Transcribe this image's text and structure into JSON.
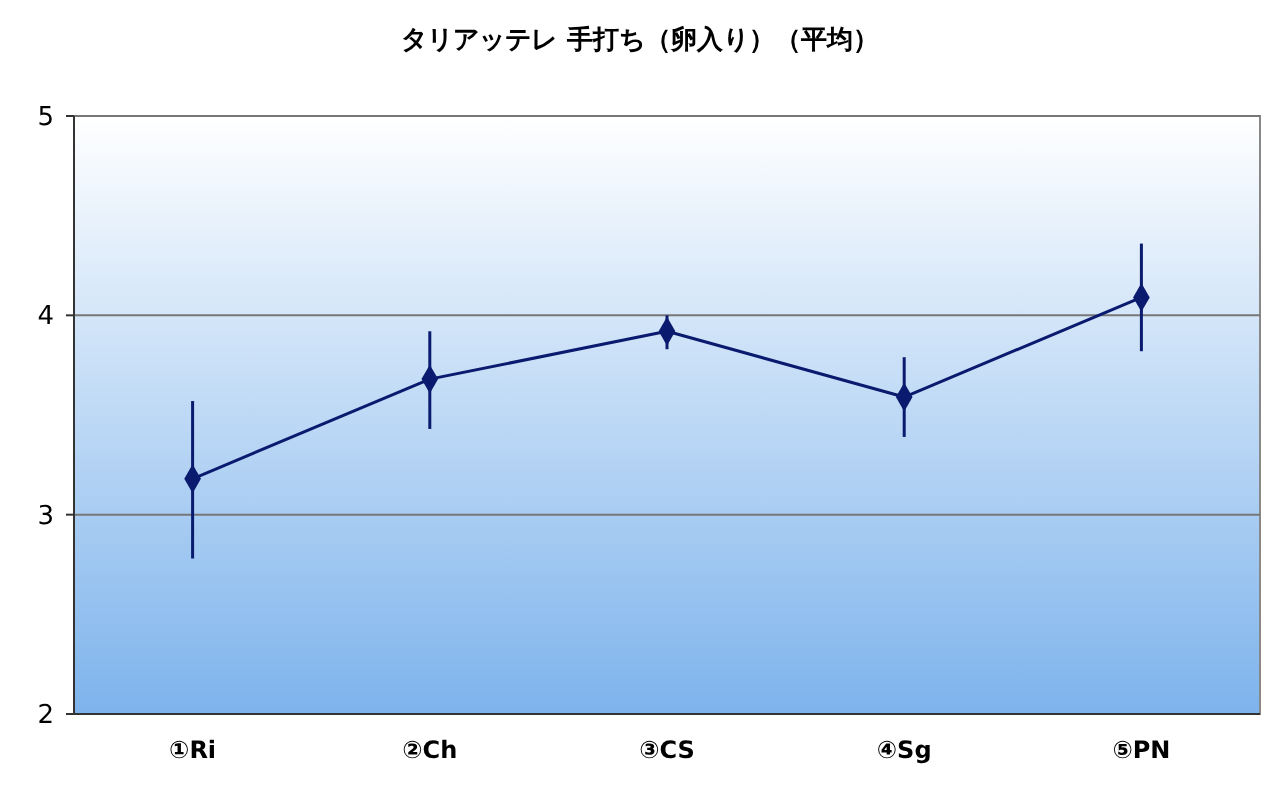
{
  "chart_data": {
    "type": "line",
    "title": "タリアッテレ 手打ち（卵入り）（平均）",
    "categories": [
      "①Ri",
      "②Ch",
      "③CS",
      "④Sg",
      "⑤PN"
    ],
    "series": [
      {
        "color": "#0a1a6e",
        "values": [
          3.18,
          3.68,
          3.92,
          3.59,
          4.09
        ],
        "errors": [
          [
            2.78,
            3.57
          ],
          [
            3.43,
            3.92
          ],
          [
            3.83,
            4.0
          ],
          [
            3.39,
            3.79
          ],
          [
            3.82,
            4.36
          ]
        ]
      }
    ],
    "ylim": [
      2,
      5
    ],
    "yticks": [
      2,
      3,
      4,
      5
    ],
    "grid": "y",
    "marker": "diamond",
    "line_style": "solid"
  }
}
